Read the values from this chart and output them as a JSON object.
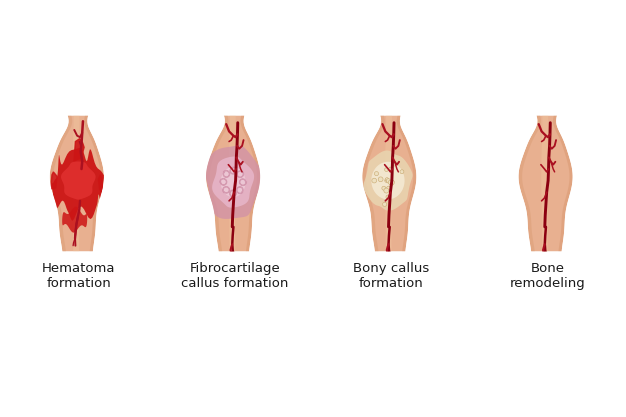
{
  "background_color": "#ffffff",
  "skin_color": "#E8B090",
  "skin_shadow_left": "#D4956A",
  "skin_shadow_right": "#C98050",
  "skin_highlight": "#F2C8A0",
  "skin_mid": "#E0A070",
  "hematoma_dark": "#AA0010",
  "hematoma_mid": "#CC1515",
  "hematoma_bright": "#E03030",
  "fibro_outer": "#D090A8",
  "fibro_inner": "#E8B8CC",
  "fibro_lightest": "#F0D0DC",
  "bony_outer": "#E8D5B0",
  "bony_inner": "#F5ECD8",
  "bony_dot": "#EDE0C0",
  "vessel_dark": "#8B0010",
  "vessel_mid": "#AA1020",
  "vessel_light": "#CC2030",
  "labels": [
    "Hematoma\nformation",
    "Fibrocartilage\ncallus formation",
    "Bony callus\nformation",
    "Bone\nremodeling"
  ],
  "label_fontsize": 9.5,
  "label_color": "#1a1a1a",
  "fig_width": 6.26,
  "fig_height": 4.17,
  "dpi": 100
}
